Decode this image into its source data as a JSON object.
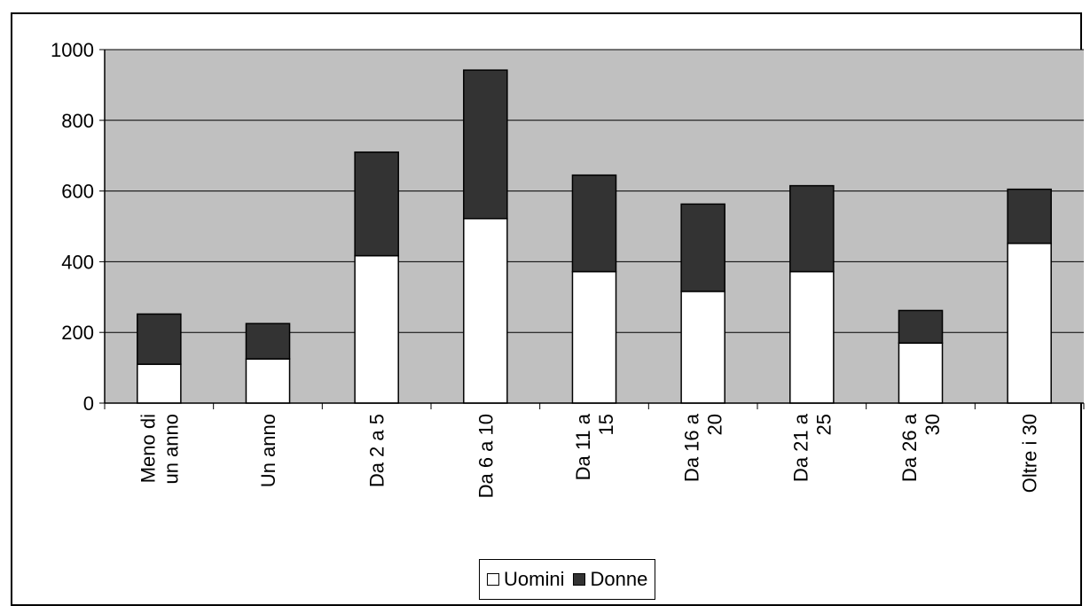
{
  "chart_data": {
    "type": "bar",
    "stacked": true,
    "categories": [
      [
        "Meno di",
        "un anno"
      ],
      [
        "Un anno"
      ],
      [
        "Da 2 a 5"
      ],
      [
        "Da 6 a 10"
      ],
      [
        "Da 11 a",
        "15"
      ],
      [
        "Da 16 a",
        "20"
      ],
      [
        "Da 21 a",
        "25"
      ],
      [
        "Da 26 a",
        "30"
      ],
      [
        "Oltre i 30"
      ]
    ],
    "series": [
      {
        "name": "Uomini",
        "color": "#ffffff",
        "values": [
          110,
          125,
          417,
          522,
          372,
          316,
          372,
          170,
          452
        ]
      },
      {
        "name": "Donne",
        "color": "#333333",
        "values": [
          142,
          100,
          293,
          420,
          273,
          247,
          243,
          92,
          153
        ]
      }
    ],
    "ylim": [
      0,
      1000
    ],
    "yticks": [
      0,
      200,
      400,
      600,
      800,
      1000
    ],
    "grid": true,
    "plot_background": "#c0c0c0",
    "legend_position": "bottom"
  }
}
